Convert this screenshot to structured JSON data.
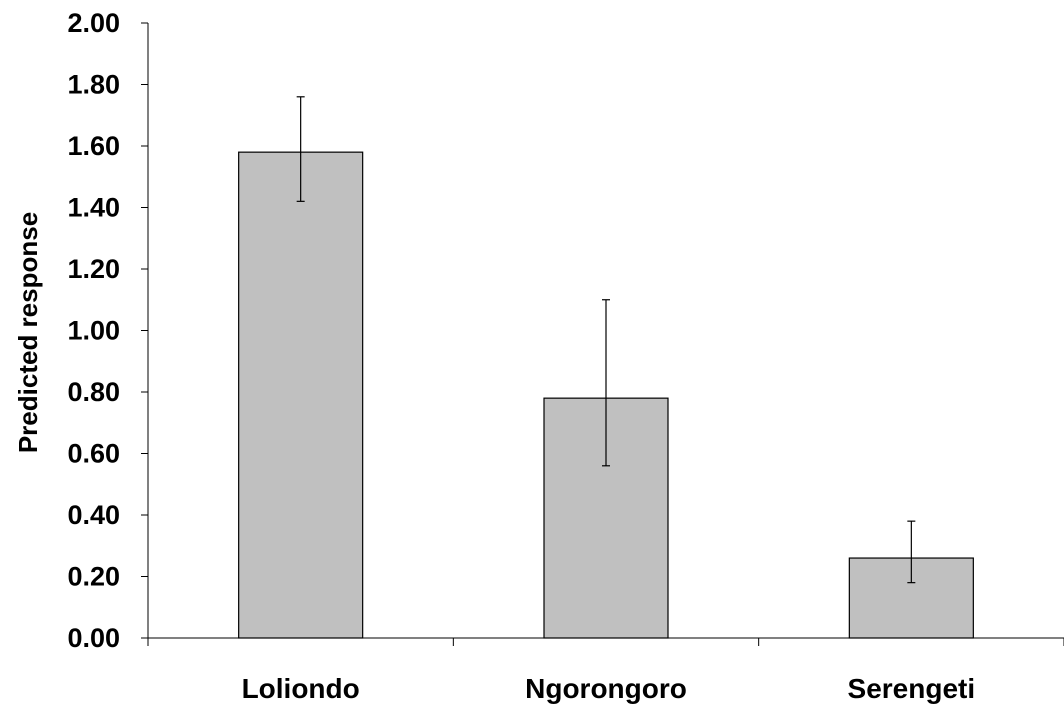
{
  "chart_data": {
    "type": "bar",
    "title": "",
    "xlabel": "",
    "ylabel": "Predicted response",
    "categories": [
      "Loliondo",
      "Ngorongoro",
      "Serengeti"
    ],
    "values": [
      1.58,
      0.78,
      0.26
    ],
    "error_upper": [
      1.76,
      1.1,
      0.38
    ],
    "error_lower": [
      1.42,
      0.56,
      0.18
    ],
    "ylim": [
      0,
      2
    ],
    "yticks": [
      "0.00",
      "0.20",
      "0.40",
      "0.60",
      "0.80",
      "1.00",
      "1.20",
      "1.40",
      "1.60",
      "1.80",
      "2.00"
    ],
    "grid": false,
    "legend": "none",
    "bar_color": "#c0c0c0",
    "bar_edge_color": "#000000"
  }
}
